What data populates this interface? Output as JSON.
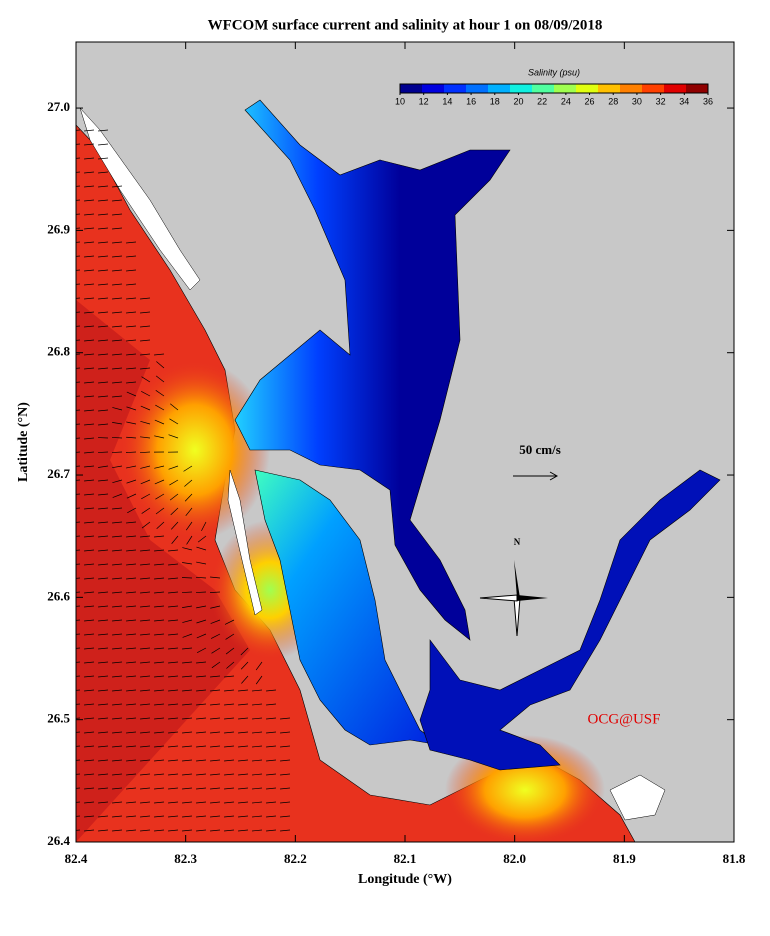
{
  "chart_data": {
    "type": "map",
    "title": "WFCOM surface current and salinity at hour 1 on 08/09/2018",
    "x_label": "Longitude (°W)",
    "y_label": "Latitude (°N)",
    "xlim": [
      82.4,
      81.8
    ],
    "ylim": [
      26.4,
      27.054
    ],
    "xticks": [
      82.4,
      82.3,
      82.2,
      82.1,
      {
        "value": 82,
        "label": "82.0"
      },
      81.9,
      81.8
    ],
    "yticks": [
      26.4,
      26.5,
      26.6,
      26.7,
      26.8,
      26.9,
      {
        "value": 27,
        "label": "27.0"
      }
    ],
    "colorbar": {
      "title": "Salinity (psu)",
      "lim": [
        10,
        36
      ],
      "ticks": [
        10,
        12,
        14,
        16,
        18,
        20,
        22,
        24,
        26,
        28,
        30,
        32,
        34,
        36
      ],
      "colors": [
        "#00008f",
        "#0000df",
        "#0030ff",
        "#0070ff",
        "#00b0ff",
        "#10f0e0",
        "#50ffa0",
        "#a0ff50",
        "#e0ff10",
        "#ffc000",
        "#ff8000",
        "#ff4000",
        "#e00000",
        "#8f0000"
      ]
    },
    "scale_label": "50 cm/s",
    "compass_label": "N",
    "credit": "OCG@USF"
  }
}
